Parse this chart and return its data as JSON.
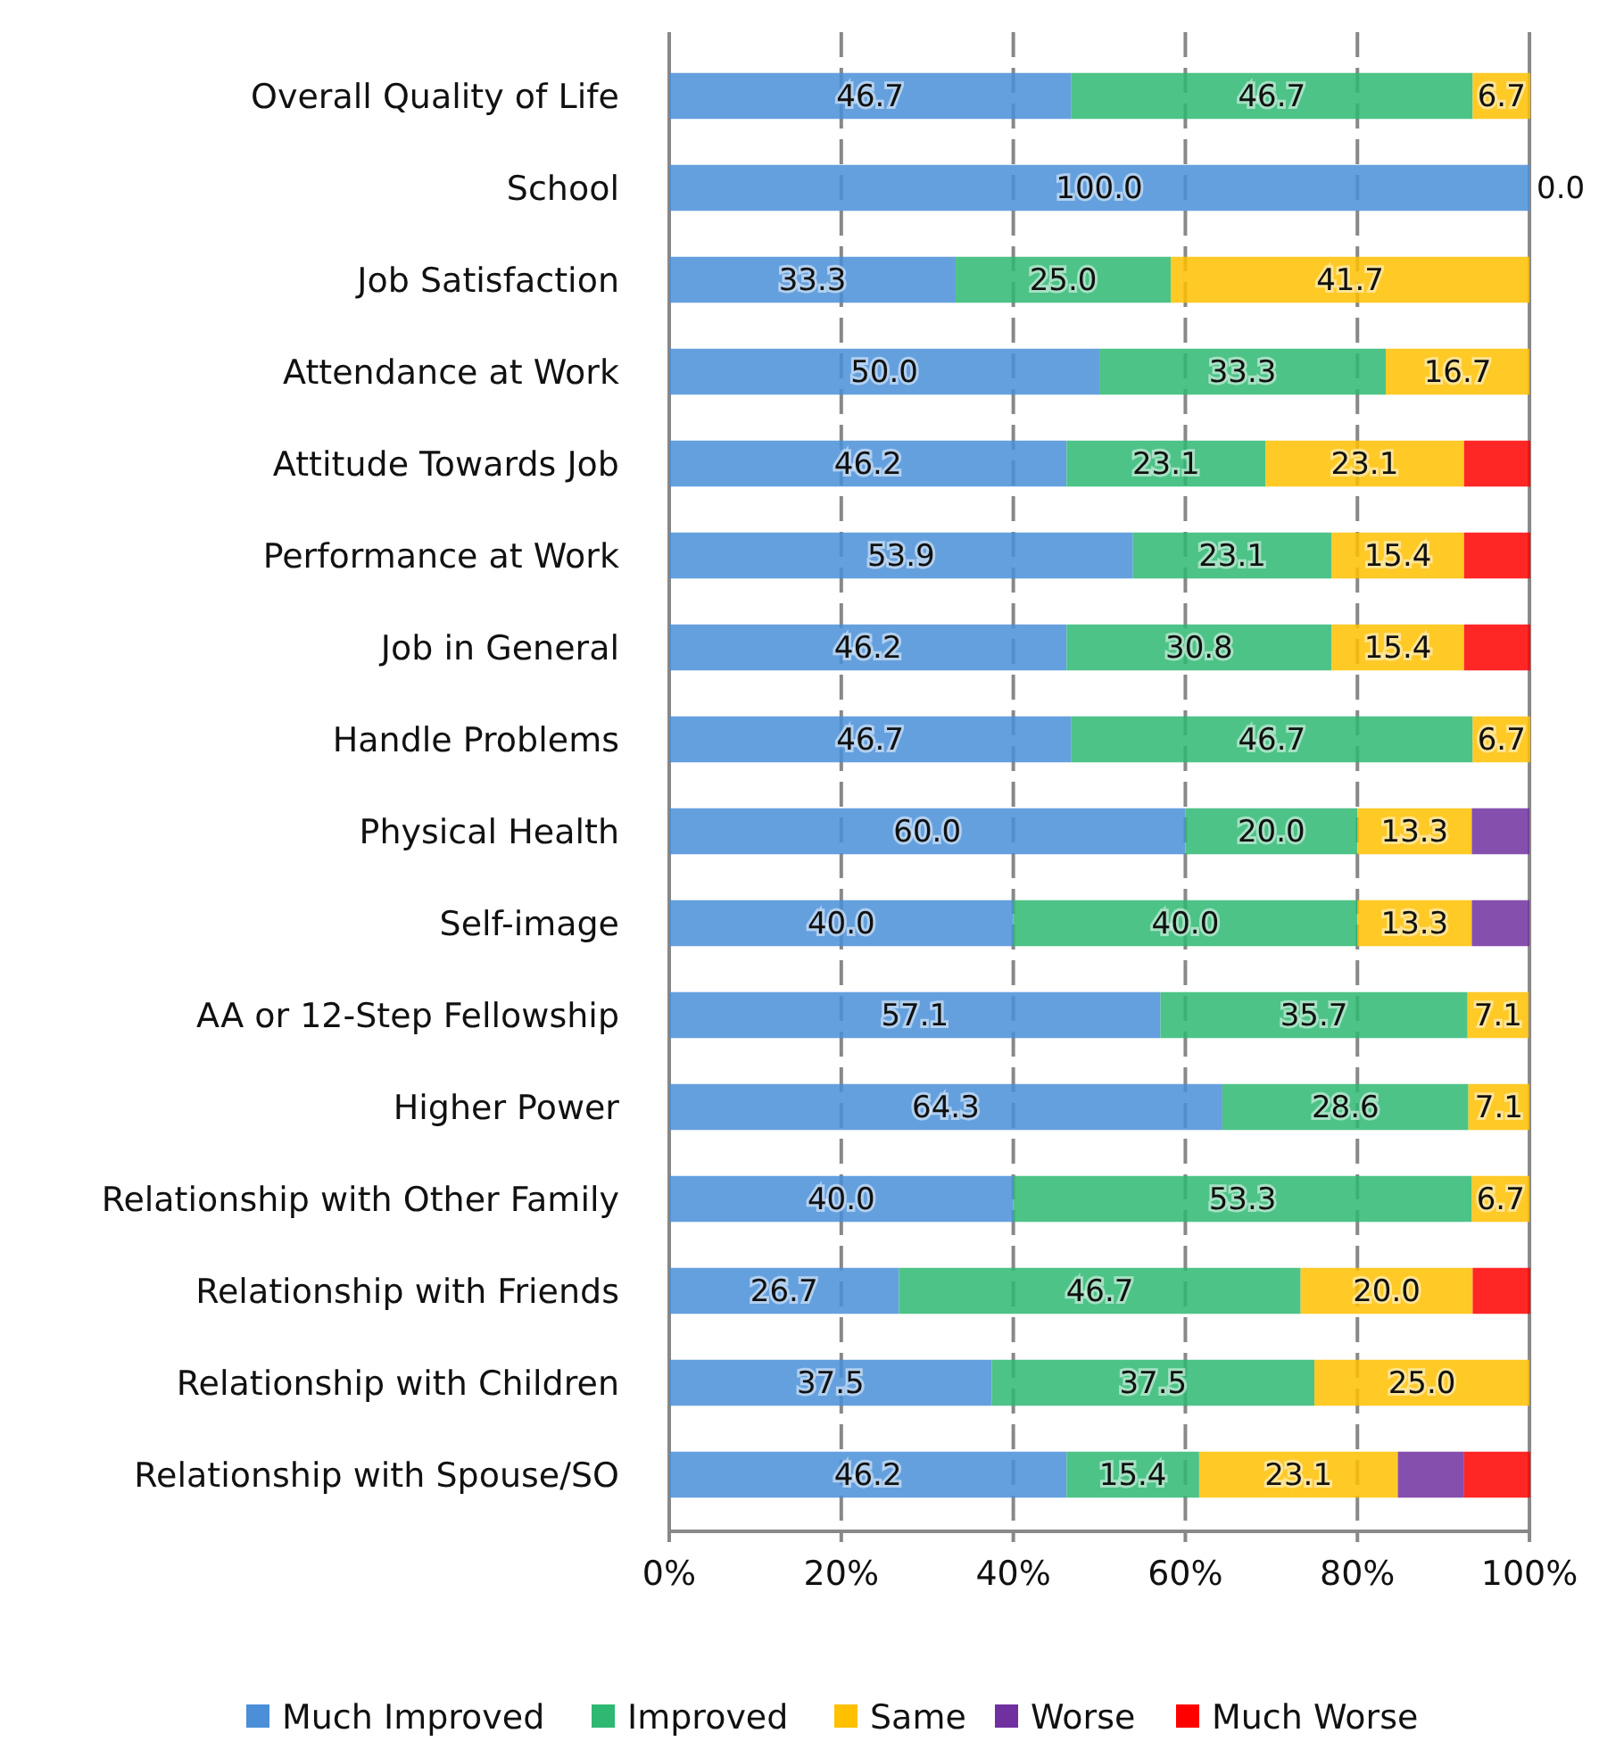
{
  "chart_data": {
    "type": "bar",
    "orientation": "horizontal",
    "stacked": true,
    "grid": "x",
    "legend": "bottom",
    "categories": [
      "Overall Quality of Life",
      "School",
      "Job Satisfaction",
      "Attendance at Work",
      "Attitude Towards Job",
      "Performance at Work",
      "Job in General",
      "Handle Problems",
      "Physical Health",
      "Self-image",
      "AA or 12-Step Fellowship",
      "Higher Power",
      "Relationship with Other Family",
      "Relationship with Friends",
      "Relationship with Children",
      "Relationship with Spouse/SO"
    ],
    "xlim": [
      0,
      100.2
    ],
    "xticks": [
      {
        "value": 0,
        "label": "0%"
      },
      {
        "value": 20,
        "label": "20%"
      },
      {
        "value": 40,
        "label": "40%"
      },
      {
        "value": 60,
        "label": "60%"
      },
      {
        "value": 80,
        "label": "80%"
      },
      {
        "value": 100,
        "label": "100%"
      }
    ],
    "series": [
      {
        "name": "Much Improved",
        "color": "#4a8fd8",
        "values": [
          46.7,
          100,
          33.3,
          50.0,
          46.2,
          53.9,
          46.2,
          46.7,
          60.0,
          40.0,
          57.1,
          64.3,
          40.0,
          26.7,
          37.5,
          46.2
        ],
        "value_labels": [
          "46.7",
          "100.0",
          "33.3",
          "50.0",
          "46.2",
          "53.9",
          "46.2",
          "46.7",
          "60.0",
          "40.0",
          "57.1",
          "64.3",
          "40.0",
          "26.7",
          "37.5",
          "46.2"
        ]
      },
      {
        "name": "Improved",
        "color": "#2eb872",
        "values": [
          46.7,
          0,
          25.0,
          33.3,
          23.1,
          23.1,
          30.8,
          46.7,
          20.0,
          40.0,
          35.7,
          28.6,
          53.3,
          46.7,
          37.5,
          15.4
        ],
        "value_labels": [
          "46.7",
          "0.0",
          "25.0",
          "33.3",
          "23.1",
          "23.1",
          "30.8",
          "46.7",
          "20.0",
          "40.0",
          "35.7",
          "28.6",
          "53.3",
          "46.7",
          "37.5",
          "15.4"
        ]
      },
      {
        "name": "Same",
        "color": "#ffc000",
        "values": [
          6.7,
          0,
          41.7,
          16.7,
          23.1,
          15.4,
          15.4,
          6.7,
          13.3,
          13.3,
          7.1,
          7.1,
          6.7,
          20.0,
          25.0,
          23.1
        ],
        "value_labels": [
          "6.7",
          null,
          "41.7",
          "16.7",
          "23.1",
          "15.4",
          "15.4",
          "6.7",
          "13.3",
          "13.3",
          "7.1",
          "7.1",
          "6.7",
          "20.0",
          "25.0",
          "23.1"
        ]
      },
      {
        "name": "Worse",
        "color": "#7030a0",
        "values": [
          0,
          0,
          0,
          0,
          0,
          0,
          0,
          0,
          6.7,
          6.7,
          0,
          0,
          0,
          0,
          0,
          7.7
        ]
      },
      {
        "name": "Much Worse",
        "color": "#ff0000",
        "values": [
          0,
          0,
          0,
          0,
          7.7,
          7.7,
          7.7,
          0,
          0,
          0,
          0,
          0,
          0,
          6.7,
          0,
          7.7
        ]
      }
    ]
  }
}
